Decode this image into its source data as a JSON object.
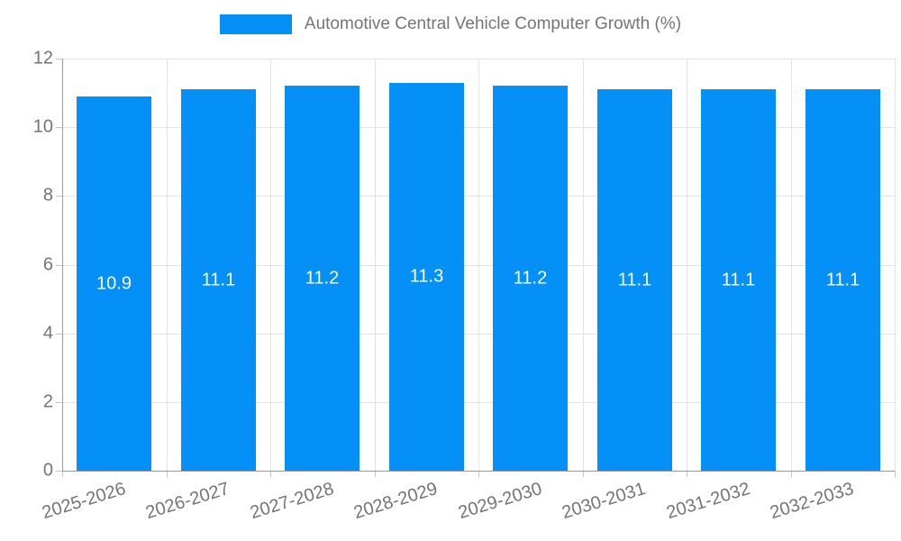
{
  "chart_data": {
    "type": "bar",
    "title": "Automotive Central Vehicle Computer Growth (%)",
    "categories": [
      "2025-2026",
      "2026-2027",
      "2027-2028",
      "2028-2029",
      "2029-2030",
      "2030-2031",
      "2031-2032",
      "2032-2033"
    ],
    "values": [
      10.9,
      11.1,
      11.2,
      11.3,
      11.2,
      11.1,
      11.1,
      11.1
    ],
    "value_labels": [
      "10.9",
      "11.1",
      "11.2",
      "11.3",
      "11.2",
      "11.1",
      "11.1",
      "11.1"
    ],
    "xlabel": "",
    "ylabel": "",
    "ylim": [
      0,
      12
    ],
    "ytick_step": 2,
    "ytick_labels": [
      "0",
      "2",
      "4",
      "6",
      "8",
      "10",
      "12"
    ],
    "grid": true,
    "legend_position": "top-center",
    "x_label_rotation_deg": -17,
    "colors": {
      "bar": "#0590F8",
      "grid": "#E3E3E3",
      "axis": "#999999",
      "tick": "#C6C6C6",
      "tick_text": "#757575",
      "title_text": "#757575",
      "value_text": "#FFFFFF"
    }
  }
}
